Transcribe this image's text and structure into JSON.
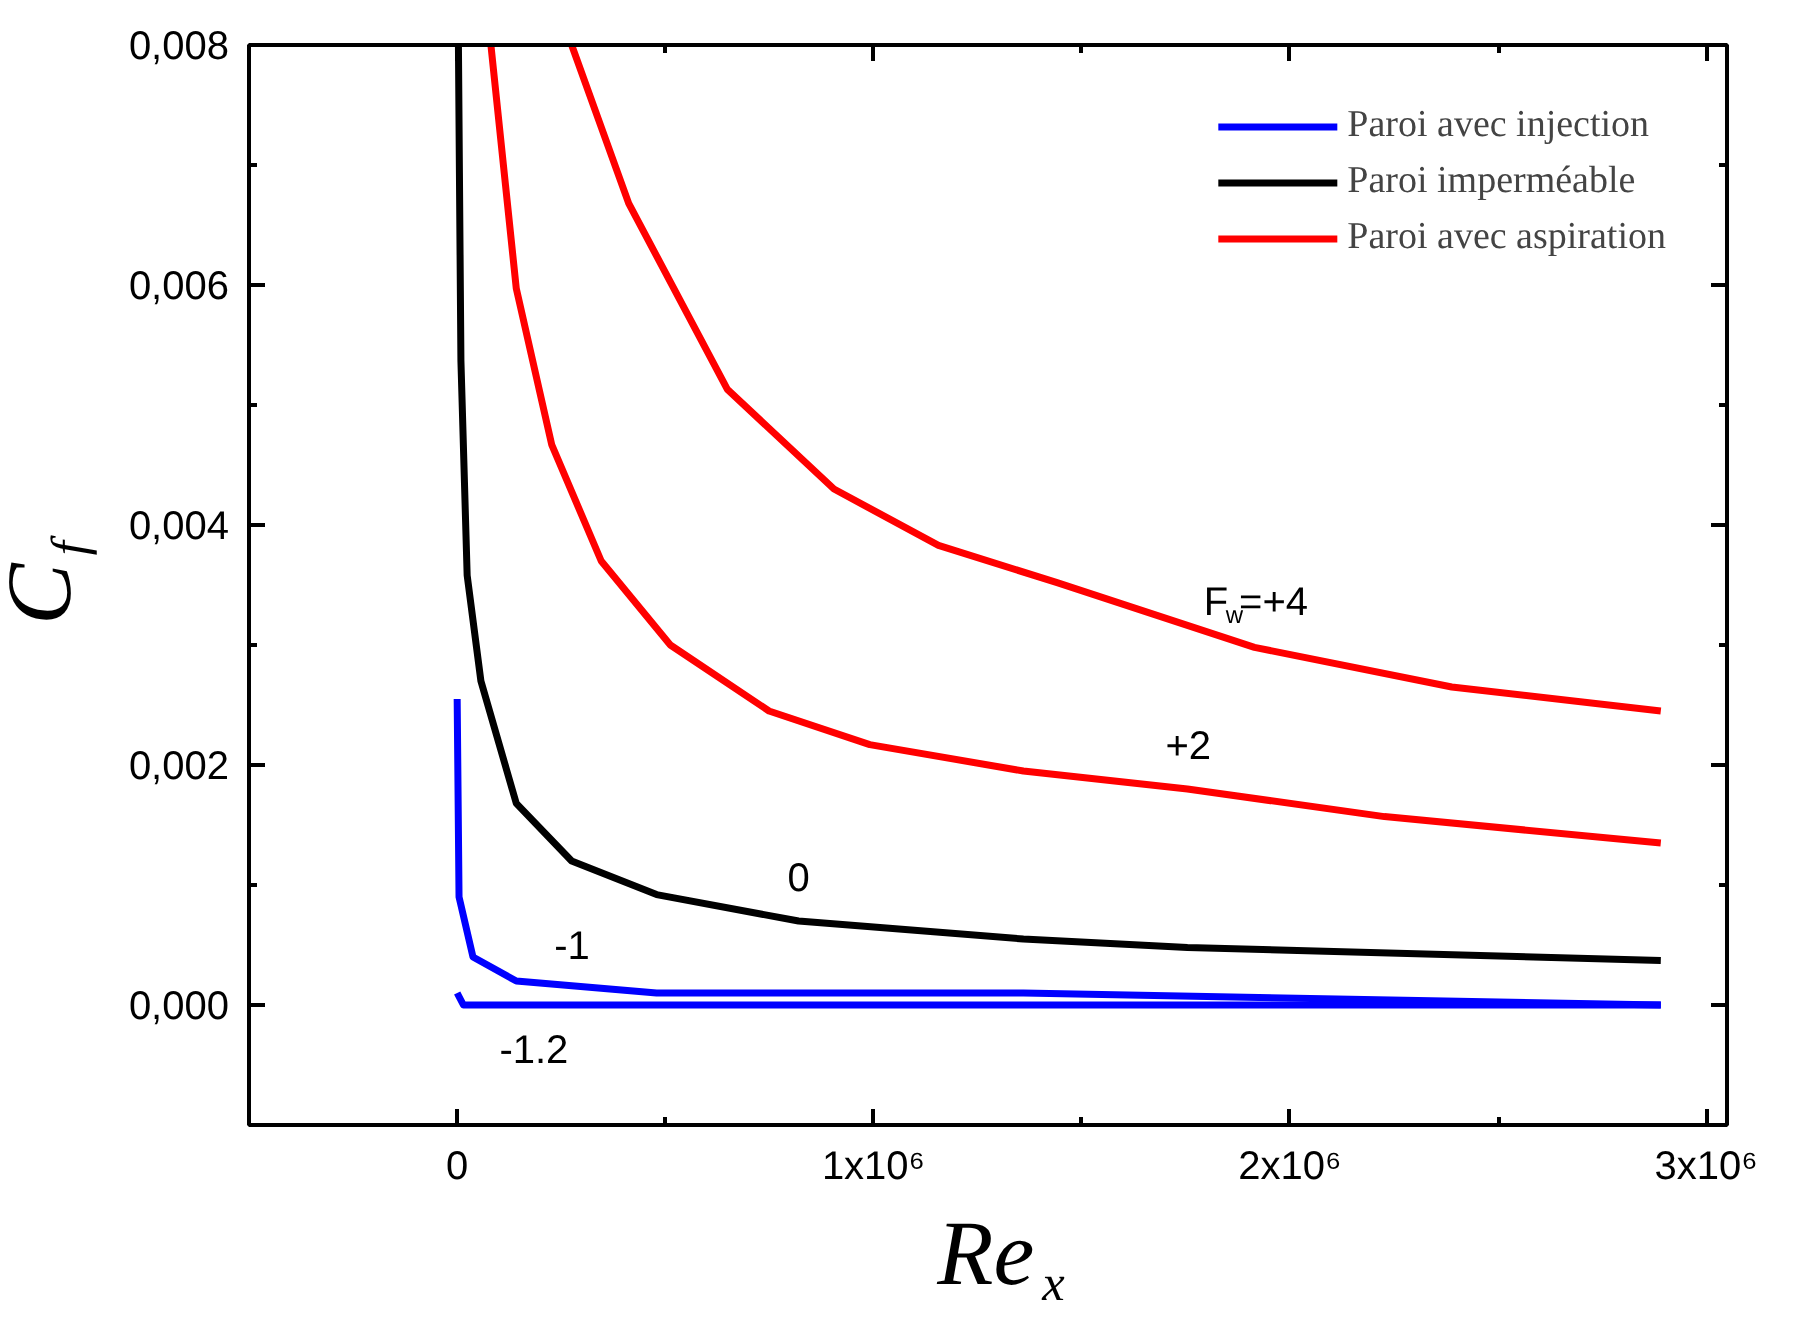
{
  "chart_data": {
    "type": "line",
    "xlabel": "Re$_{x}$",
    "ylabel": "C$_{f}$",
    "xlim": [
      -500000,
      3050000
    ],
    "ylim": [
      -0.001,
      0.008
    ],
    "xticks": [
      {
        "value": 0,
        "label": "0"
      },
      {
        "value": 1000000,
        "label": "1x10⁶"
      },
      {
        "value": 2000000,
        "label": "2x10⁶"
      },
      {
        "value": 3000000,
        "label": "3x10⁶"
      }
    ],
    "yticks": [
      {
        "value": 0,
        "label": "0,000"
      },
      {
        "value": 0.002,
        "label": "0,002"
      },
      {
        "value": 0.004,
        "label": "0,004"
      },
      {
        "value": 0.006,
        "label": "0,006"
      },
      {
        "value": 0.008,
        "label": "0,008"
      }
    ],
    "grid": false,
    "legend": "top right",
    "marker": "none",
    "line_style": "solid",
    "series": [
      {
        "name": "Paroi avec injection",
        "color": "#0000ff",
        "x": [
          0,
          4500,
          38000,
          142000,
          479000,
          1360000,
          2891000
        ],
        "values": [
          0.00255,
          0.0009,
          0.0004,
          0.0002,
          0.0001,
          0.0001,
          0.0
        ]
      },
      {
        "color": "#0000ff",
        "x": [
          0,
          15000,
          500000,
          1500000,
          2891000
        ],
        "values": [
          0.0001,
          0.0,
          0.0,
          0.0,
          0.0
        ]
      },
      {
        "name": "Paroi imperméable",
        "color": "#000000",
        "x": [
          3000,
          9000,
          24000,
          57000,
          142000,
          275000,
          479000,
          820000,
          1360000,
          1754000,
          2891000
        ],
        "values": [
          0.008,
          0.00537,
          0.00358,
          0.0027,
          0.00168,
          0.0012,
          0.00092,
          0.0007,
          0.00055,
          0.00048,
          0.00037
        ]
      },
      {
        "color": "#ff0000",
        "x": [
          81000,
          142000,
          227000,
          346000,
          512000,
          749000,
          991000,
          1360000,
          1754000,
          2227000,
          2891000
        ],
        "values": [
          0.008,
          0.00597,
          0.00467,
          0.0037,
          0.003,
          0.00245,
          0.00217,
          0.00195,
          0.0018,
          0.00157,
          0.00135
        ]
      },
      {
        "name": "Paroi avec aspiration",
        "color": "#ff0000",
        "x": [
          275000,
          412000,
          649000,
          905000,
          1156000,
          1441000,
          1915000,
          2389000,
          2891000
        ],
        "values": [
          0.008,
          0.00668,
          0.00513,
          0.0043,
          0.00383,
          0.00352,
          0.00298,
          0.00265,
          0.00245
        ]
      }
    ],
    "annotations": [
      {
        "text": "F$_{w}$=+4",
        "x": 1915000,
        "y": 0.00298
      },
      {
        "text": "+2",
        "x": 1754000,
        "y": 0.0018
      },
      {
        "text": "0",
        "x": 820000,
        "y": 0.0007
      },
      {
        "text": "-1",
        "x": 142000,
        "y": 0.0002
      },
      {
        "text": "-1.2",
        "x": 15000,
        "y": 0.0
      }
    ]
  }
}
